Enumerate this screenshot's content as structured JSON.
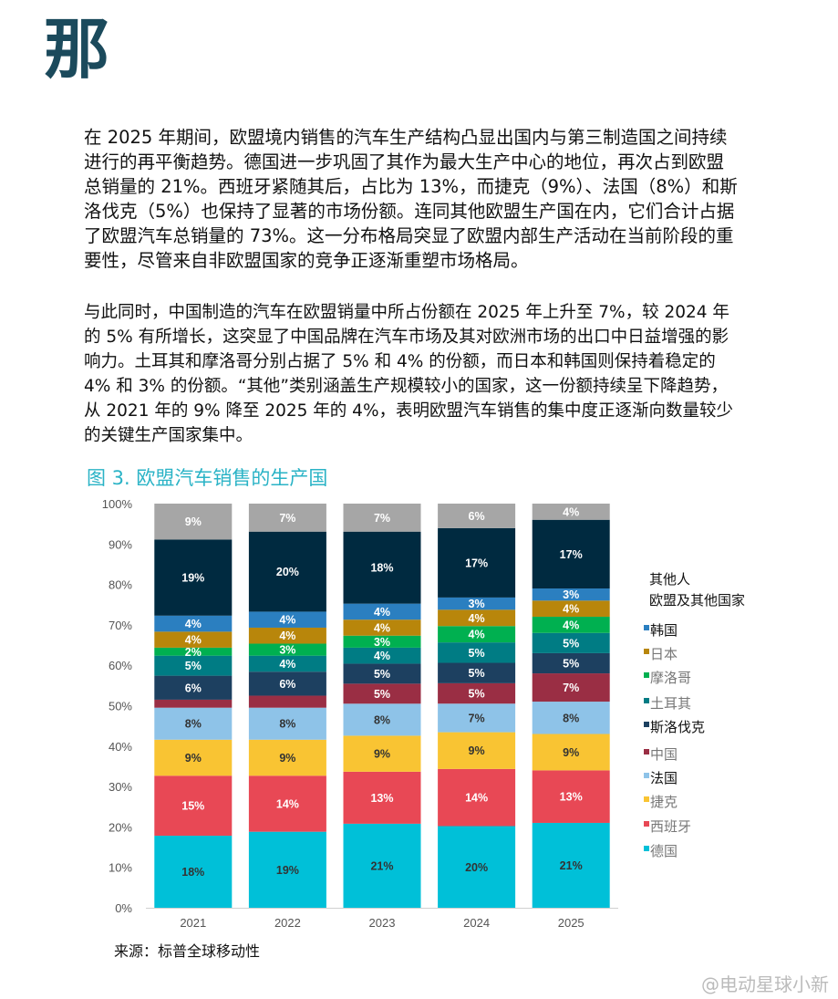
{
  "header": {
    "char": "那"
  },
  "paragraphs": [
    "在 2025 年期间，欧盟境内销售的汽车生产结构凸显出国内与第三制造国之间持续进行的再平衡趋势。德国进一步巩固了其作为最大生产中心的地位，再次占到欧盟总销量的 21%。西班牙紧随其后，占比为 13%，而捷克（9%）、法国（8%）和斯洛伐克（5%）也保持了显著的市场份额。连同其他欧盟生产国在内，它们合计占据了欧盟汽车总销量的 73%。这一分布格局突显了欧盟内部生产活动在当前阶段的重要性，尽管来自非欧盟国家的竞争正逐渐重塑市场格局。",
    "与此同时，中国制造的汽车在欧盟销量中所占份额在 2025 年上升至 7%，较 2024 年的 5% 有所增长，这突显了中国品牌在汽车市场及其对欧洲市场的出口中日益增强的影响力。土耳其和摩洛哥分别占据了 5% 和 4% 的份额，而日本和韩国则保持着稳定的 4% 和 3% 的份额。“其他”类别涵盖生产规模较小的国家，这一份额持续呈下降趋势，从 2021 年的 9% 降至 2025 年的 4%，表明欧盟汽车销售的集中度正逐渐向数量较少的关键生产国家集中。"
  ],
  "figure": {
    "title": "图 3. 欧盟汽车销售的生产国",
    "source": "来源：标普全球移动性"
  },
  "watermark": "@电动星球小新",
  "chart_data": {
    "type": "bar",
    "stacked": true,
    "title": "图 3. 欧盟汽车销售的生产国",
    "categories": [
      "2021",
      "2022",
      "2023",
      "2024",
      "2025"
    ],
    "ylim": [
      0,
      100
    ],
    "yticks": [
      "0%",
      "10%",
      "20%",
      "30%",
      "40%",
      "50%",
      "60%",
      "70%",
      "80%",
      "90%",
      "100%"
    ],
    "legend_placement": "right",
    "series": [
      {
        "name": "德国",
        "color": "#00c0d8",
        "label_dark": true,
        "values": [
          18,
          19,
          21,
          20,
          21
        ],
        "labels": [
          "18%",
          "19%",
          "21%",
          "20%",
          "21%"
        ]
      },
      {
        "name": "西班牙",
        "color": "#e84855",
        "values": [
          15,
          14,
          13,
          14,
          13
        ],
        "labels": [
          "15%",
          "14%",
          "13%",
          "14%",
          "13%"
        ]
      },
      {
        "name": "捷克",
        "color": "#f9c433",
        "label_dark": true,
        "values": [
          9,
          9,
          9,
          9,
          9
        ],
        "labels": [
          "9%",
          "9%",
          "9%",
          "9%",
          "9%"
        ]
      },
      {
        "name": "法国",
        "color": "#8ec3e8",
        "label_dark": true,
        "values": [
          8,
          8,
          8,
          7,
          8
        ],
        "labels": [
          "8%",
          "8%",
          "8%",
          "7%",
          "8%"
        ]
      },
      {
        "name": "中国",
        "color": "#9a2e44",
        "values": [
          2,
          3,
          5,
          5,
          7
        ],
        "labels": [
          "",
          "",
          "5%",
          "5%",
          "7%"
        ]
      },
      {
        "name": "斯洛伐克",
        "color": "#1d4060",
        "values": [
          6,
          6,
          5,
          5,
          5
        ],
        "labels": [
          "6%",
          "6%",
          "5%",
          "5%",
          "5%"
        ]
      },
      {
        "name": "土耳其",
        "color": "#007c84",
        "values": [
          5,
          4,
          4,
          5,
          5
        ],
        "labels": [
          "5%",
          "4%",
          "4%",
          "5%",
          "5%"
        ]
      },
      {
        "name": "摩洛哥",
        "color": "#00b050",
        "values": [
          2,
          3,
          3,
          4,
          4
        ],
        "labels": [
          "2%",
          "3%",
          "3%",
          "4%",
          "4%"
        ]
      },
      {
        "name": "日本",
        "color": "#b8860b",
        "values": [
          4,
          4,
          4,
          4,
          4
        ],
        "labels": [
          "4%",
          "4%",
          "4%",
          "4%",
          "4%"
        ]
      },
      {
        "name": "韩国",
        "color": "#2b7fc0",
        "values": [
          4,
          4,
          4,
          3,
          3
        ],
        "labels": [
          "4%",
          "4%",
          "4%",
          "3%",
          "3%"
        ]
      },
      {
        "name": "欧盟及其他国家",
        "color": "#002a40",
        "values": [
          19,
          20,
          18,
          17,
          17
        ],
        "labels": [
          "19%",
          "20%",
          "18%",
          "17%",
          "17%"
        ]
      },
      {
        "name": "其他人",
        "color": "#a6a6a6",
        "values": [
          9,
          7,
          7,
          6,
          4
        ],
        "labels": [
          "9%",
          "7%",
          "7%",
          "6%",
          "4%"
        ]
      }
    ]
  }
}
